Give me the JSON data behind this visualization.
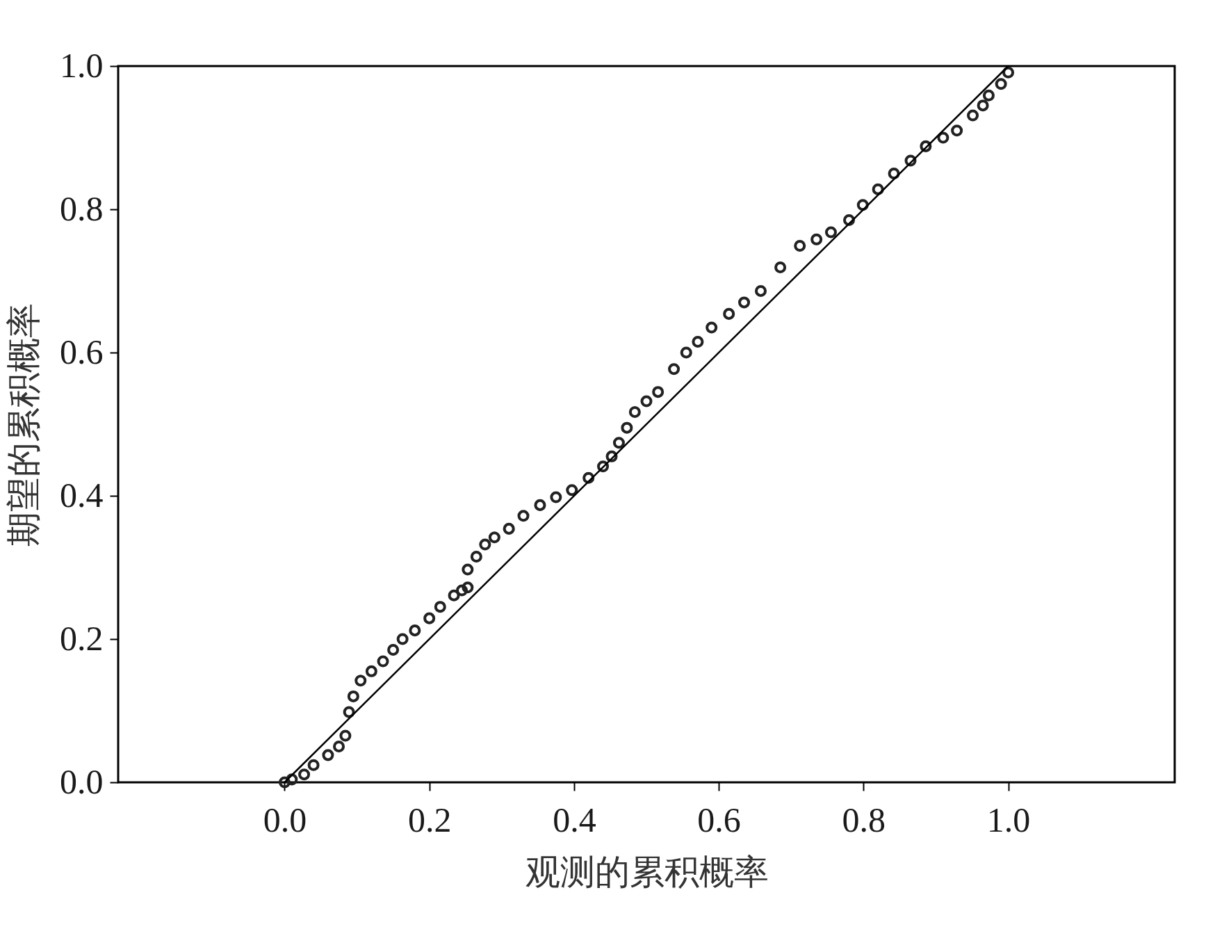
{
  "chart_data": {
    "type": "scatter",
    "xlabel": "观测的累积概率",
    "ylabel": "期望的累积概率",
    "xlim": [
      -0.23,
      1.23
    ],
    "ylim": [
      0,
      1
    ],
    "xticks": [
      {
        "value": 0,
        "label": "0.0"
      },
      0.2,
      0.4,
      0.6,
      0.8,
      {
        "value": 1,
        "label": "1.0"
      }
    ],
    "yticks": [
      {
        "value": 0,
        "label": "0.0"
      },
      0.2,
      0.4,
      0.6,
      0.8,
      {
        "value": 1,
        "label": "1.0"
      }
    ],
    "grid": false,
    "series": [
      {
        "color": "#222222",
        "marker": "circle",
        "x": [
          0,
          0.01,
          0.027,
          0.04,
          0.06,
          0.075,
          0.084,
          0.089,
          0.095,
          0.105,
          0.12,
          0.136,
          0.15,
          0.163,
          0.18,
          0.2,
          0.215,
          0.234,
          0.245,
          0.253,
          0.253,
          0.265,
          0.277,
          0.29,
          0.31,
          0.33,
          0.353,
          0.375,
          0.397,
          0.42,
          0.44,
          0.452,
          0.462,
          0.473,
          0.484,
          0.5,
          0.516,
          0.538,
          0.555,
          0.571,
          0.59,
          0.614,
          0.635,
          0.658,
          0.685,
          0.712,
          0.735,
          0.755,
          0.78,
          0.799,
          0.82,
          0.842,
          0.865,
          0.886,
          0.91,
          0.929,
          0.951,
          0.965,
          0.973,
          0.99,
          1.0
        ],
        "values": [
          0,
          0.004,
          0.011,
          0.024,
          0.038,
          0.05,
          0.065,
          0.098,
          0.12,
          0.142,
          0.155,
          0.169,
          0.185,
          0.2,
          0.212,
          0.229,
          0.245,
          0.261,
          0.268,
          0.272,
          0.297,
          0.315,
          0.332,
          0.342,
          0.354,
          0.372,
          0.387,
          0.398,
          0.408,
          0.425,
          0.441,
          0.455,
          0.474,
          0.495,
          0.517,
          0.532,
          0.545,
          0.577,
          0.6,
          0.615,
          0.635,
          0.654,
          0.67,
          0.686,
          0.719,
          0.749,
          0.758,
          0.768,
          0.785,
          0.806,
          0.828,
          0.85,
          0.868,
          0.888,
          0.9,
          0.91,
          0.931,
          0.945,
          0.959,
          0.975,
          0.991
        ]
      },
      {
        "type": "line",
        "color": "#000000",
        "marker": "none",
        "line_style": "solid",
        "x": [
          0,
          1
        ],
        "values": [
          0,
          1
        ]
      }
    ]
  }
}
